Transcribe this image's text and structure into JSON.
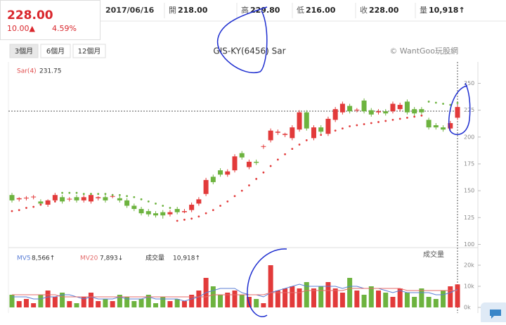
{
  "header": {
    "price": "228.00",
    "change": "10.00▲",
    "percent": "4.59%",
    "date": "2017/06/16",
    "fields": [
      {
        "label": "開",
        "value": "218.00"
      },
      {
        "label": "高",
        "value": "229.80"
      },
      {
        "label": "低",
        "value": "216.00"
      },
      {
        "label": "收",
        "value": "228.00"
      },
      {
        "label": "量",
        "value": "10,918↑"
      }
    ]
  },
  "tabs": [
    "3個月",
    "6個月",
    "12個月"
  ],
  "watermark": "© WantGoo玩股網",
  "chart_data": {
    "type": "candlestick",
    "title": "GIS-KY(6456) Sar",
    "up_color": "#e23a3a",
    "down_color": "#6db33f",
    "open": [
      146,
      142,
      143,
      144,
      140,
      137,
      141,
      144,
      142,
      144,
      141,
      140,
      143,
      144,
      145,
      143,
      141,
      136,
      133,
      131,
      129,
      130,
      128,
      133,
      130,
      132,
      138,
      147,
      163,
      169,
      165,
      169,
      185,
      172,
      177,
      191,
      197,
      204,
      202,
      199,
      207,
      223,
      199,
      209,
      203,
      216,
      223,
      229,
      225,
      234,
      225,
      223,
      224,
      224,
      226,
      233,
      226,
      226,
      216,
      211,
      209,
      208,
      218
    ],
    "high": [
      148,
      144,
      145,
      146,
      142,
      142,
      148,
      146,
      144,
      146,
      146,
      148,
      145,
      146,
      147,
      145,
      143,
      138,
      135,
      133,
      131,
      132,
      132,
      135,
      133,
      139,
      144,
      162,
      165,
      171,
      170,
      184,
      187,
      179,
      179,
      193,
      208,
      207,
      204,
      211,
      225,
      225,
      211,
      211,
      219,
      228,
      233,
      231,
      227,
      236,
      227,
      226,
      226,
      233,
      232,
      235,
      228,
      228,
      218,
      213,
      211,
      215,
      229.8
    ],
    "low": [
      139,
      140,
      141,
      142,
      136,
      135,
      139,
      138,
      140,
      139,
      139,
      138,
      141,
      139,
      143,
      139,
      134,
      131,
      127,
      126,
      125,
      124,
      126,
      128,
      129,
      130,
      136,
      145,
      156,
      163,
      163,
      167,
      179,
      170,
      174,
      189,
      195,
      202,
      200,
      197,
      205,
      206,
      197,
      203,
      201,
      214,
      221,
      222,
      223,
      222,
      219,
      221,
      220,
      222,
      224,
      221,
      220,
      221,
      207,
      207,
      205,
      206,
      216
    ],
    "close": [
      141,
      143,
      143.5,
      144.5,
      138,
      141,
      146,
      140,
      142.5,
      141,
      144,
      146,
      144,
      141,
      145,
      141,
      136,
      133,
      129,
      128,
      127,
      127,
      130,
      130,
      131,
      137,
      142,
      160,
      158,
      165,
      168,
      182,
      181,
      177,
      176,
      191.5,
      206,
      205,
      203,
      209,
      223,
      208,
      209,
      205,
      217,
      226,
      231,
      224,
      225.5,
      224,
      221,
      224,
      222,
      231,
      230,
      223,
      222,
      223,
      209,
      209,
      207,
      213,
      228
    ],
    "sar": {
      "name": "Sar(4)",
      "value_label": "231.75",
      "values": [
        131,
        132,
        134,
        135,
        137,
        139,
        140,
        148,
        148,
        148,
        147,
        147,
        147,
        147,
        146,
        146,
        145,
        144,
        142,
        140,
        138,
        136,
        134,
        122,
        123,
        124,
        126,
        129,
        132,
        136,
        140,
        145,
        150,
        155,
        161,
        167,
        173,
        179,
        184,
        189,
        193,
        197,
        200,
        202,
        204,
        206,
        208,
        210,
        211,
        212,
        213,
        214,
        215,
        216,
        217,
        218,
        219,
        220,
        233,
        232,
        231,
        230,
        231.75
      ]
    },
    "ylim": [
      97,
      270
    ],
    "yticks": [
      100,
      125,
      150,
      175,
      200,
      225,
      250
    ],
    "volume": {
      "title": "成交量",
      "name": "成交量",
      "value_label": "10,918↑",
      "values": [
        6000,
        3000,
        4000,
        2000,
        6000,
        8000,
        5000,
        7000,
        3000,
        2000,
        5000,
        7000,
        3000,
        4000,
        3000,
        6000,
        5000,
        3000,
        4000,
        6000,
        2000,
        5000,
        3000,
        4000,
        3000,
        6000,
        8000,
        14000,
        10000,
        6000,
        7000,
        8000,
        6000,
        5000,
        4000,
        2000,
        20000,
        8000,
        9000,
        10000,
        9000,
        12000,
        9000,
        10000,
        12000,
        9000,
        7000,
        14000,
        8000,
        6000,
        10000,
        8000,
        7000,
        5000,
        9000,
        7000,
        5000,
        9000,
        5000,
        4000,
        8000,
        10000,
        10918
      ],
      "ylim": [
        0,
        27000
      ],
      "yticks": [
        {
          "value": 0,
          "label": "0k"
        },
        {
          "value": 10000,
          "label": "10k"
        },
        {
          "value": 20000,
          "label": "20k"
        }
      ],
      "averages": [
        {
          "name": "MV5",
          "color": "#5b7fd6",
          "value_label": "8,566↑",
          "values": [
            5000,
            5000,
            5000,
            4000,
            4000,
            5000,
            5000,
            6000,
            6000,
            5000,
            4000,
            5000,
            4000,
            4000,
            4000,
            5000,
            4000,
            4000,
            4000,
            5000,
            4000,
            4000,
            4000,
            4000,
            3000,
            4000,
            5000,
            7000,
            8000,
            9000,
            9000,
            9000,
            7000,
            6000,
            6000,
            5000,
            7000,
            8000,
            9000,
            10000,
            11000,
            10000,
            10000,
            10000,
            10000,
            10000,
            9000,
            10000,
            10000,
            9000,
            9000,
            9000,
            8000,
            7000,
            8000,
            7000,
            7000,
            7000,
            7000,
            6000,
            6000,
            7000,
            8566
          ]
        },
        {
          "name": "MV20",
          "color": "#e46b6b",
          "value_label": "7,893↓",
          "values": [
            6000,
            6000,
            6000,
            6000,
            6000,
            6000,
            6000,
            5000,
            5000,
            5000,
            5000,
            5000,
            5000,
            5000,
            5000,
            5000,
            5000,
            5000,
            5000,
            5000,
            5000,
            5000,
            5000,
            5000,
            5000,
            5000,
            5000,
            5000,
            6000,
            6000,
            6000,
            6000,
            6000,
            6000,
            6000,
            6000,
            7000,
            7000,
            7000,
            7000,
            7000,
            8000,
            8000,
            8000,
            8000,
            8000,
            8000,
            9000,
            9000,
            9000,
            9000,
            9000,
            9000,
            9000,
            9000,
            8000,
            8000,
            8000,
            8000,
            8000,
            8000,
            8000,
            7893
          ]
        }
      ]
    }
  }
}
